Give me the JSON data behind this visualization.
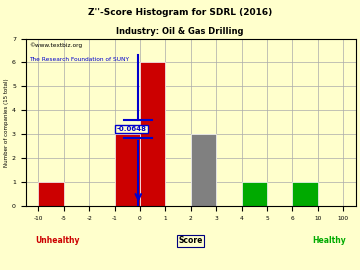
{
  "title": "Z''-Score Histogram for SDRL (2016)",
  "subtitle": "Industry: Oil & Gas Drilling",
  "watermark1": "©www.textbiz.org",
  "watermark2": "The Research Foundation of SUNY",
  "xlabel": "Score",
  "ylabel": "Number of companies (15 total)",
  "xtick_labels": [
    "-10",
    "-5",
    "-2",
    "-1",
    "0",
    "1",
    "2",
    "3",
    "4",
    "5",
    "6",
    "10",
    "100"
  ],
  "xtick_positions": [
    0,
    1,
    2,
    3,
    4,
    5,
    6,
    7,
    8,
    9,
    10,
    11,
    12
  ],
  "bars": [
    {
      "x_left": 0,
      "x_right": 1,
      "height": 1,
      "color": "#cc0000"
    },
    {
      "x_left": 3,
      "x_right": 4,
      "height": 3,
      "color": "#cc0000"
    },
    {
      "x_left": 4,
      "x_right": 5,
      "height": 6,
      "color": "#cc0000"
    },
    {
      "x_left": 6,
      "x_right": 7,
      "height": 3,
      "color": "#808080"
    },
    {
      "x_left": 8,
      "x_right": 9,
      "height": 1,
      "color": "#00aa00"
    },
    {
      "x_left": 10,
      "x_right": 11,
      "height": 1,
      "color": "#00aa00"
    }
  ],
  "marker_x_idx": 3.936,
  "marker_label": "-0.0648",
  "marker_color": "#0000cc",
  "ylim": [
    0,
    7
  ],
  "yticks": [
    0,
    1,
    2,
    3,
    4,
    5,
    6,
    7
  ],
  "ytick_labels": [
    "0",
    "1",
    "2",
    "3",
    "4",
    "5",
    "6",
    "7"
  ],
  "unhealthy_label": "Unhealthy",
  "healthy_label": "Healthy",
  "unhealthy_color": "#cc0000",
  "healthy_color": "#00aa00",
  "bg_color": "#ffffcc",
  "grid_color": "#aaaaaa"
}
